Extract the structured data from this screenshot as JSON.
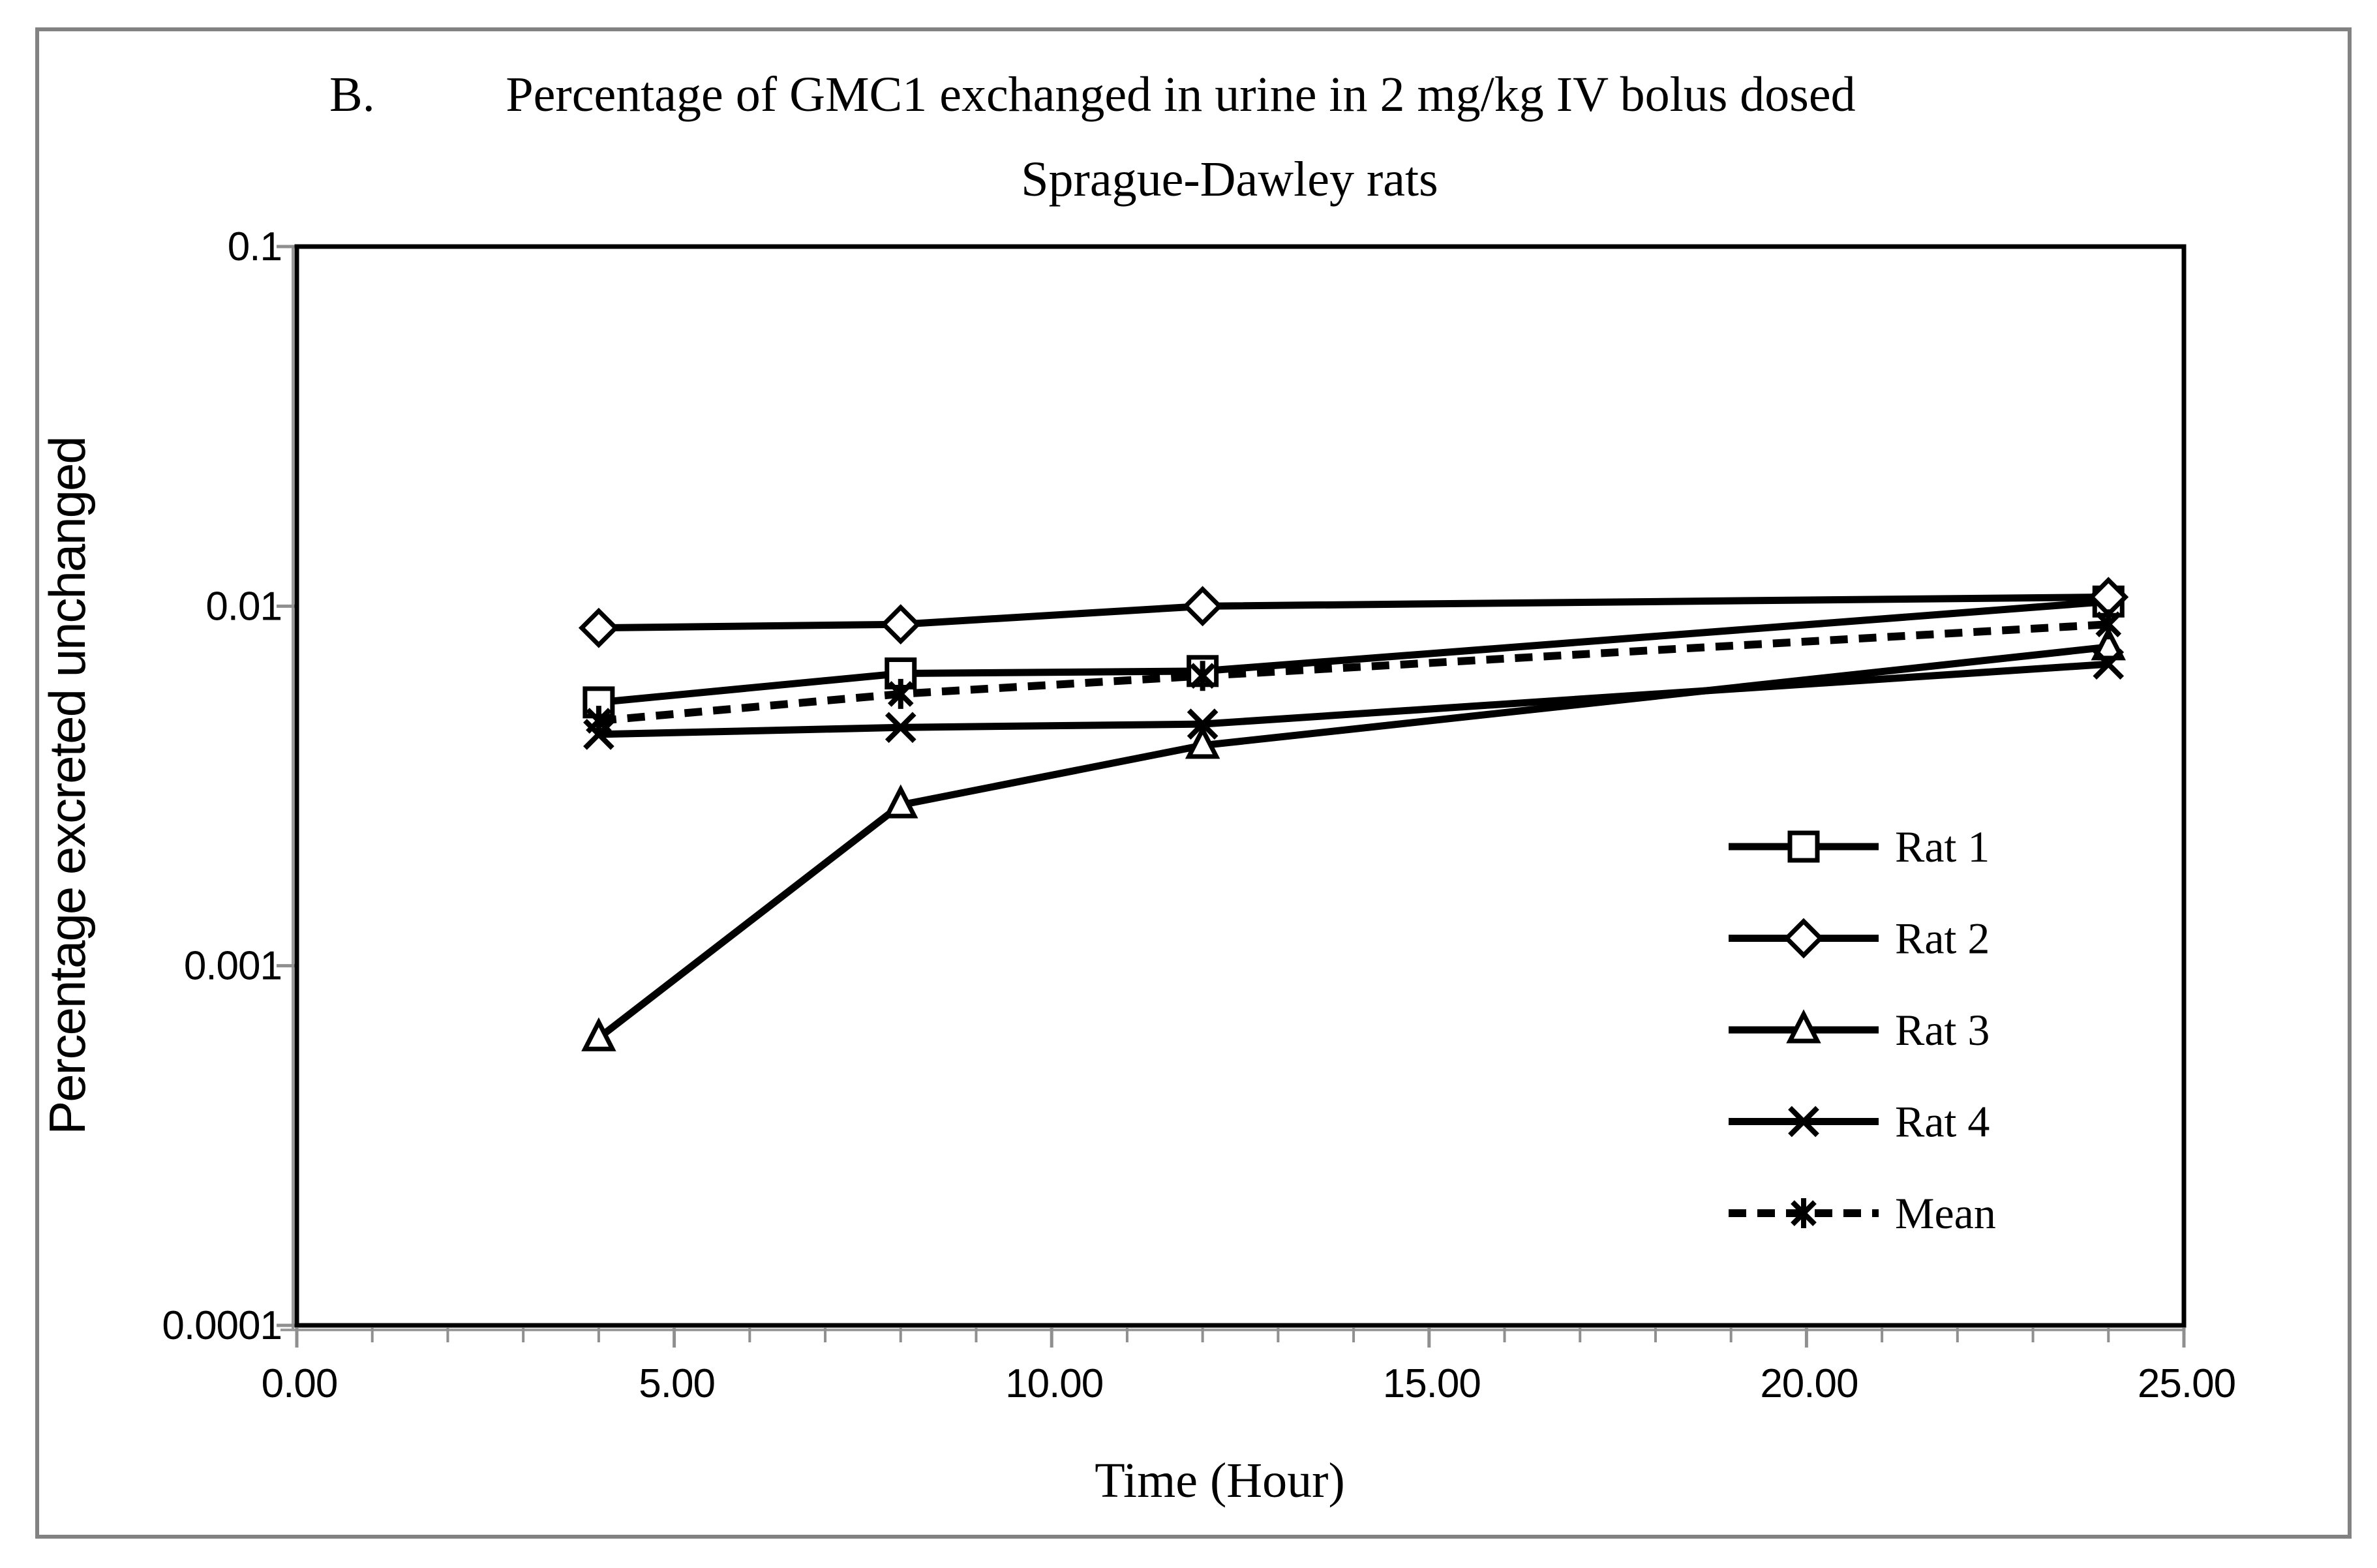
{
  "figure": {
    "panel_label": "B.",
    "title_line1": "Percentage of GMC1 exchanged in urine in 2 mg/kg IV bolus dosed",
    "title_line2": "Sprague-Dawley rats"
  },
  "chart_data": {
    "type": "line",
    "title": "B. Percentage of GMC1 exchanged in urine in 2 mg/kg IV bolus dosed Sprague-Dawley rats",
    "xlabel": "Time (Hour)",
    "ylabel": "Percentage excreted unchanged",
    "x": [
      4,
      8,
      12,
      24
    ],
    "xlim": [
      0,
      25
    ],
    "x_tick_labels": [
      "0.00",
      "5.00",
      "10.00",
      "15.00",
      "20.00",
      "25.00"
    ],
    "x_tick_values": [
      0,
      5,
      10,
      15,
      20,
      25
    ],
    "x_minor_tick_step": 1,
    "y_scale": "log",
    "ylim": [
      0.0001,
      0.1
    ],
    "y_tick_labels": [
      "0.1",
      "0.01",
      "0.001",
      "0.0001"
    ],
    "y_tick_values": [
      0.1,
      0.01,
      0.001,
      0.0001
    ],
    "grid": false,
    "legend_position": "inside-right",
    "series": [
      {
        "name": "Rat 1",
        "marker": "square",
        "line": "solid",
        "values": [
          0.0054,
          0.0065,
          0.0066,
          0.0103
        ]
      },
      {
        "name": "Rat 2",
        "marker": "diamond",
        "line": "solid",
        "values": [
          0.0087,
          0.0089,
          0.01,
          0.0106
        ]
      },
      {
        "name": "Rat 3",
        "marker": "triangle",
        "line": "solid",
        "values": [
          0.00063,
          0.0028,
          0.0041,
          0.0077
        ]
      },
      {
        "name": "Rat 4",
        "marker": "x",
        "line": "solid",
        "values": [
          0.0044,
          0.0046,
          0.0047,
          0.0069
        ]
      },
      {
        "name": "Mean",
        "marker": "star6",
        "line": "dashed",
        "values": [
          0.0048,
          0.0057,
          0.0064,
          0.0089
        ]
      }
    ],
    "colors": {
      "line": "#000000",
      "text": "#000000",
      "ticks": "#8f8f8f",
      "axis_shadow": "#9a9a9a",
      "frame": "#828282",
      "background": "#ffffff"
    }
  }
}
